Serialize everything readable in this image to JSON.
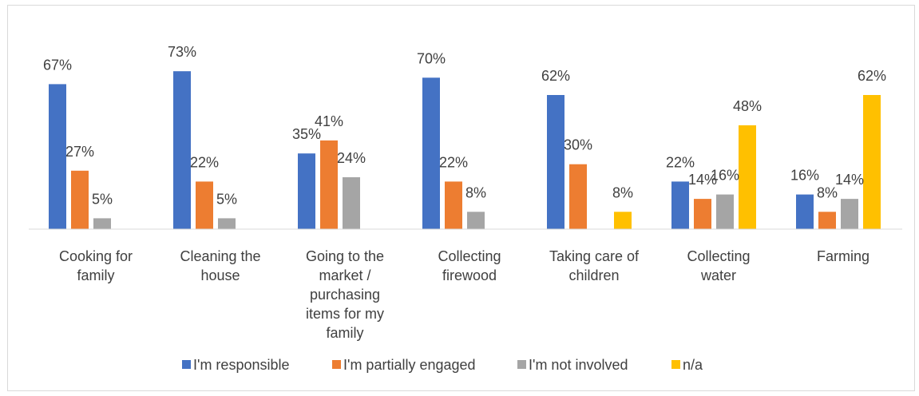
{
  "chart_data": {
    "type": "bar",
    "title": "",
    "xlabel": "",
    "ylabel": "",
    "ylim": [
      0,
      80
    ],
    "grid": false,
    "legend_position": "bottom",
    "categories": [
      [
        "Cooking for",
        "family"
      ],
      [
        "Cleaning the",
        "house"
      ],
      [
        "Going to the",
        "market /",
        "purchasing",
        "items for my",
        "family"
      ],
      [
        "Collecting",
        "firewood"
      ],
      [
        "Taking care of",
        "children"
      ],
      [
        "Collecting",
        "water"
      ],
      [
        "Farming"
      ]
    ],
    "series": [
      {
        "name": "I'm responsible",
        "color": "#4472c4",
        "values": [
          67,
          73,
          35,
          70,
          62,
          22,
          16
        ],
        "labels": [
          "67%",
          "73%",
          "35%",
          "70%",
          "62%",
          "22%",
          "16%"
        ]
      },
      {
        "name": "I'm partially engaged",
        "color": "#ed7d31",
        "values": [
          27,
          22,
          41,
          22,
          30,
          14,
          8
        ],
        "labels": [
          "27%",
          "22%",
          "41%",
          "22%",
          "30%",
          "14%",
          "8%"
        ]
      },
      {
        "name": "I'm not involved",
        "color": "#a5a5a5",
        "values": [
          5,
          5,
          24,
          8,
          null,
          16,
          14
        ],
        "labels": [
          "5%",
          "5%",
          "24%",
          "8%",
          "",
          "16%",
          "14%"
        ]
      },
      {
        "name": "n/a",
        "color": "#ffc000",
        "values": [
          null,
          null,
          null,
          null,
          8,
          48,
          62
        ],
        "labels": [
          "",
          "",
          "",
          "",
          "8%",
          "48%",
          "62%"
        ]
      }
    ]
  }
}
